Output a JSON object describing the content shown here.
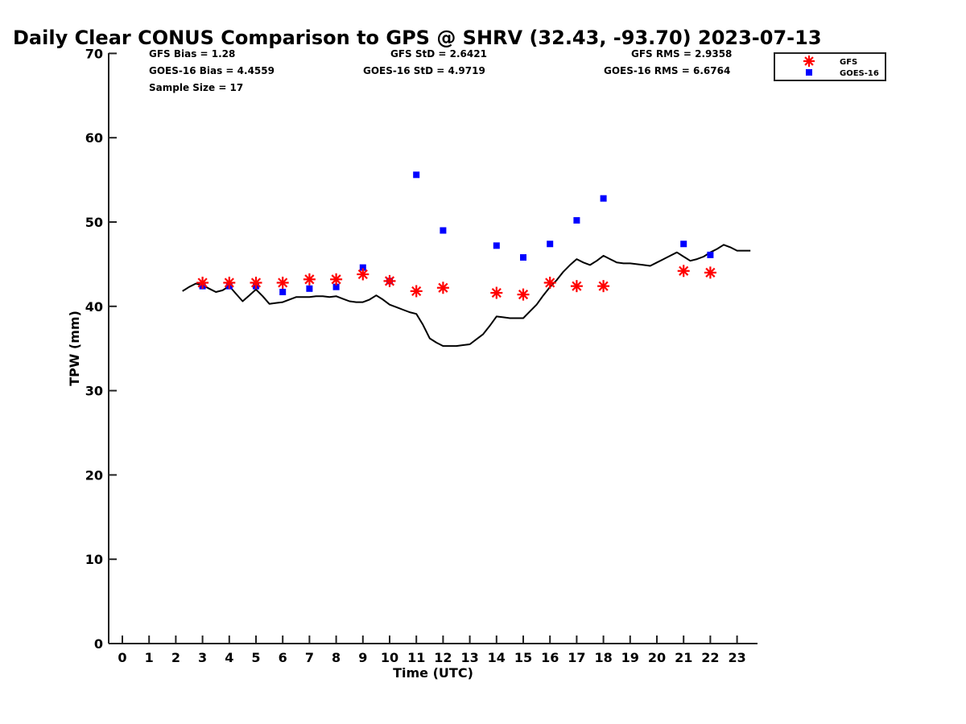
{
  "chart_data": {
    "type": "scatter",
    "title": "Daily Clear CONUS Comparison to GPS @ SHRV (32.43, -93.70) 2023-07-13",
    "xlabel": "Time (UTC)",
    "ylabel": "TPW (mm)",
    "xlim": [
      -0.5,
      23.7
    ],
    "ylim": [
      0,
      70
    ],
    "x_ticks": [
      "0",
      "1",
      "2",
      "3",
      "4",
      "5",
      "6",
      "7",
      "8",
      "9",
      "10",
      "11",
      "12",
      "13",
      "14",
      "15",
      "16",
      "17",
      "18",
      "19",
      "20",
      "21",
      "22",
      "23"
    ],
    "y_ticks": [
      "0",
      "10",
      "20",
      "30",
      "40",
      "50",
      "60",
      "70"
    ],
    "grid": false,
    "legend_position": "top-right",
    "legend": [
      {
        "label": "GFS",
        "marker": "asterisk",
        "color": "#ff0000"
      },
      {
        "label": "GOES-16",
        "marker": "square",
        "color": "#0000ff"
      }
    ],
    "stats": {
      "gfs_bias": "GFS Bias = 1.28",
      "goes_bias": "GOES-16 Bias = 4.4559",
      "sample_size": "Sample Size = 17",
      "gfs_std": "GFS StD = 2.6421",
      "goes_std": "GOES-16 StD = 4.9719",
      "gfs_rms": "GFS RMS = 2.9358",
      "goes_rms": "GOES-16 RMS = 6.6764"
    },
    "series": [
      {
        "name": "GFS",
        "style": "asterisk",
        "color": "#ff0000",
        "x": [
          3,
          4,
          5,
          6,
          7,
          8,
          9,
          10,
          11,
          12,
          14,
          15,
          16,
          17,
          18,
          21,
          22
        ],
        "y": [
          42.8,
          42.8,
          42.8,
          42.8,
          43.2,
          43.2,
          43.8,
          43.0,
          41.8,
          42.2,
          41.6,
          41.4,
          42.8,
          42.4,
          42.4,
          44.2,
          44.0
        ]
      },
      {
        "name": "GOES-16",
        "style": "square",
        "color": "#0000ff",
        "x": [
          3,
          4,
          5,
          6,
          7,
          8,
          9,
          10,
          11,
          12,
          14,
          15,
          16,
          17,
          18,
          21,
          22
        ],
        "y": [
          42.4,
          42.4,
          42.4,
          41.7,
          42.1,
          42.3,
          44.6,
          43.0,
          55.6,
          49.0,
          47.2,
          45.8,
          47.4,
          50.2,
          52.8,
          47.4,
          46.1
        ]
      },
      {
        "style": "line",
        "color": "#000000",
        "x": [
          2.25,
          2.5,
          2.75,
          3.0,
          3.25,
          3.5,
          3.75,
          4.0,
          4.25,
          4.5,
          4.75,
          5.0,
          5.25,
          5.5,
          5.75,
          6.0,
          6.25,
          6.5,
          6.75,
          7.0,
          7.25,
          7.5,
          7.75,
          8.0,
          8.25,
          8.5,
          8.75,
          9.0,
          9.25,
          9.5,
          9.75,
          10.0,
          10.25,
          10.5,
          10.75,
          11.0,
          11.25,
          11.5,
          11.75,
          12.0,
          12.25,
          12.5,
          12.75,
          13.0,
          13.25,
          13.5,
          13.75,
          14.0,
          14.25,
          14.5,
          14.75,
          15.0,
          15.25,
          15.5,
          15.75,
          16.0,
          16.25,
          16.5,
          16.75,
          17.0,
          17.25,
          17.5,
          17.75,
          18.0,
          18.25,
          18.5,
          18.75,
          19.0,
          19.25,
          19.5,
          19.75,
          20.0,
          20.25,
          20.5,
          20.75,
          21.0,
          21.25,
          21.5,
          21.75,
          22.0,
          22.25,
          22.5,
          22.75,
          23.0,
          23.25,
          23.5
        ],
        "y": [
          41.8,
          42.3,
          42.7,
          42.5,
          42.1,
          41.7,
          41.9,
          42.4,
          41.5,
          40.6,
          41.3,
          42.0,
          41.2,
          40.3,
          40.4,
          40.5,
          40.8,
          41.1,
          41.1,
          41.1,
          41.2,
          41.2,
          41.1,
          41.2,
          40.9,
          40.6,
          40.5,
          40.5,
          40.8,
          41.3,
          40.8,
          40.2,
          39.9,
          39.6,
          39.3,
          39.1,
          37.8,
          36.2,
          35.7,
          35.3,
          35.3,
          35.3,
          35.4,
          35.5,
          36.1,
          36.7,
          37.7,
          38.8,
          38.7,
          38.6,
          38.6,
          38.6,
          39.4,
          40.2,
          41.3,
          42.3,
          43.1,
          44.1,
          44.9,
          45.6,
          45.2,
          44.9,
          45.4,
          46.0,
          45.6,
          45.2,
          45.1,
          45.1,
          45.0,
          44.9,
          44.8,
          45.2,
          45.6,
          46.0,
          46.4,
          45.9,
          45.4,
          45.6,
          45.9,
          46.4,
          46.8,
          47.3,
          47.0,
          46.6,
          46.6,
          46.6
        ]
      }
    ]
  }
}
